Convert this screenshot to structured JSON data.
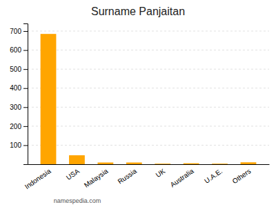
{
  "chart_data": {
    "type": "bar",
    "title": "Surname Panjaitan",
    "categories": [
      "Indonesia",
      "USA",
      "Malaysia",
      "Russia",
      "UK",
      "Australia",
      "U.A.E.",
      "Others"
    ],
    "values": [
      685,
      47,
      9,
      9,
      3,
      5,
      3,
      10
    ],
    "color": "#FFA500",
    "ylim": [
      0,
      740
    ],
    "yticks": [
      100,
      200,
      300,
      400,
      500,
      600,
      700
    ],
    "grid": true,
    "annotation": "namespedia.com"
  }
}
